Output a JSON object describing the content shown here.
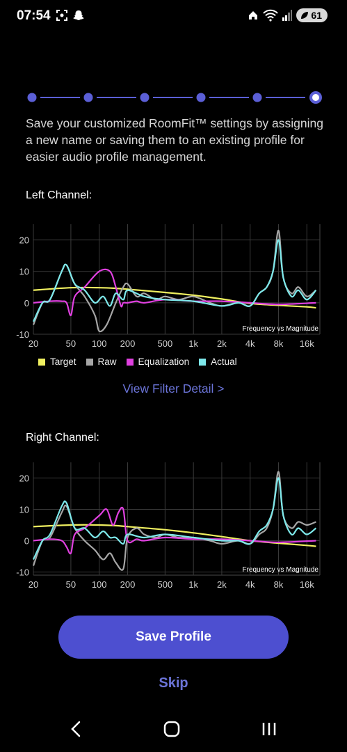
{
  "status_bar": {
    "time": "07:54",
    "battery": "61"
  },
  "stepper": {
    "steps": 6,
    "current": 6
  },
  "description": "Save your customized RoomFit™ settings by assigning a new name or saving them to an existing profile for easier audio profile management.",
  "left_channel": {
    "title": "Left Channel:"
  },
  "right_channel": {
    "title": "Right Channel:"
  },
  "view_filter_detail": "View Filter Detail >",
  "save_button": "Save Profile",
  "skip": "Skip",
  "chart_data": [
    {
      "type": "line",
      "title": "Frequency vs Magnitude",
      "x_scale": "log",
      "x_ticks": [
        "20",
        "50",
        "100",
        "200",
        "500",
        "1k",
        "2k",
        "4k",
        "8k",
        "16k"
      ],
      "x_tick_values": [
        20,
        50,
        100,
        200,
        500,
        1000,
        2000,
        4000,
        8000,
        16000
      ],
      "y_ticks": [
        20,
        10,
        0,
        -10
      ],
      "ylim": [
        -10,
        25
      ],
      "xlim": [
        20,
        22000
      ],
      "grid": true,
      "legend_position": "bottom",
      "series": [
        {
          "name": "Target",
          "color": "#f0f060",
          "x": [
            20,
            50,
            100,
            150,
            200,
            500,
            1000,
            2000,
            4000,
            8000,
            16000,
            20000
          ],
          "values": [
            4,
            4.8,
            4.8,
            4.6,
            4.3,
            3.3,
            2.4,
            1.2,
            -0.2,
            -0.8,
            -1.3,
            -1.6
          ]
        },
        {
          "name": "Raw",
          "color": "#a6a6a6",
          "x": [
            20,
            25,
            30,
            40,
            45,
            55,
            70,
            90,
            100,
            120,
            150,
            180,
            200,
            250,
            300,
            400,
            500,
            700,
            1000,
            1500,
            2000,
            3000,
            4000,
            5000,
            6000,
            7000,
            8000,
            9000,
            11000,
            13000,
            16000,
            20000
          ],
          "values": [
            -7,
            0,
            1,
            10,
            12,
            6,
            2,
            -4,
            -9,
            -7,
            0,
            5,
            6,
            2,
            3,
            1,
            2,
            1,
            2,
            0,
            -1,
            0,
            -1,
            3,
            5,
            10,
            23,
            8,
            3,
            5,
            2,
            4
          ]
        },
        {
          "name": "Equalization",
          "color": "#e040e0",
          "x": [
            20,
            30,
            40,
            45,
            50,
            55,
            70,
            100,
            130,
            150,
            170,
            180,
            200,
            250,
            300,
            500,
            1000,
            2000,
            4000,
            8000,
            20000
          ],
          "values": [
            0,
            0.5,
            0.5,
            0,
            -4,
            2,
            5,
            10,
            10,
            5,
            -1,
            0,
            0,
            0.5,
            0,
            1,
            0.5,
            0.5,
            0,
            -0.5,
            0
          ]
        },
        {
          "name": "Actual",
          "color": "#7de8ea",
          "x": [
            20,
            25,
            30,
            40,
            45,
            55,
            70,
            90,
            110,
            130,
            150,
            180,
            200,
            300,
            500,
            1000,
            2000,
            3000,
            4000,
            5000,
            6000,
            7000,
            8000,
            9000,
            11000,
            13000,
            16000,
            20000
          ],
          "values": [
            -6,
            0,
            1,
            10,
            12,
            6,
            4,
            0,
            2,
            -1,
            3,
            1,
            4,
            2,
            1,
            0.5,
            -1,
            0,
            -1,
            3,
            5,
            10,
            20,
            8,
            2,
            4,
            1,
            4
          ]
        }
      ]
    },
    {
      "type": "line",
      "title": "Frequency vs Magnitude",
      "x_scale": "log",
      "x_ticks": [
        "20",
        "50",
        "100",
        "200",
        "500",
        "1k",
        "2k",
        "4k",
        "8k",
        "16k"
      ],
      "x_tick_values": [
        20,
        50,
        100,
        200,
        500,
        1000,
        2000,
        4000,
        8000,
        16000
      ],
      "y_ticks": [
        20,
        10,
        0,
        -10
      ],
      "ylim": [
        -11,
        25
      ],
      "xlim": [
        20,
        22000
      ],
      "grid": true,
      "series": [
        {
          "name": "Target",
          "color": "#f0f060",
          "x": [
            20,
            50,
            100,
            150,
            200,
            500,
            1000,
            2000,
            4000,
            8000,
            16000,
            20000
          ],
          "values": [
            4.5,
            5,
            5,
            4.8,
            4.5,
            3.5,
            2.5,
            1.3,
            0,
            -0.8,
            -1.5,
            -1.8
          ]
        },
        {
          "name": "Raw",
          "color": "#a6a6a6",
          "x": [
            20,
            25,
            30,
            40,
            45,
            55,
            70,
            90,
            110,
            130,
            150,
            180,
            200,
            250,
            300,
            400,
            500,
            700,
            1000,
            1500,
            2000,
            3000,
            4000,
            5000,
            6000,
            7000,
            8000,
            9000,
            11000,
            13000,
            16000,
            20000
          ],
          "values": [
            -8,
            0,
            1,
            9,
            11,
            4,
            0,
            -3,
            -6,
            -4,
            -7,
            -9,
            1,
            4,
            2,
            1,
            2,
            1,
            1,
            0,
            -1,
            0,
            -1,
            2,
            4,
            10,
            22,
            8,
            4,
            6,
            5,
            6
          ]
        },
        {
          "name": "Equalization",
          "color": "#e040e0",
          "x": [
            20,
            30,
            40,
            45,
            50,
            55,
            70,
            100,
            120,
            140,
            160,
            180,
            200,
            250,
            300,
            500,
            1000,
            2000,
            4000,
            8000,
            20000
          ],
          "values": [
            0,
            0.5,
            0,
            -2,
            -4,
            2,
            4,
            8,
            10,
            5,
            9,
            10,
            0,
            0.5,
            0,
            1,
            0.5,
            0.5,
            0,
            -0.5,
            0
          ]
        },
        {
          "name": "Actual",
          "color": "#7de8ea",
          "x": [
            20,
            25,
            30,
            40,
            45,
            55,
            70,
            90,
            110,
            130,
            150,
            180,
            200,
            300,
            500,
            1000,
            2000,
            3000,
            4000,
            5000,
            6000,
            7000,
            8000,
            9000,
            11000,
            13000,
            16000,
            20000
          ],
          "values": [
            -6,
            0,
            2,
            11,
            12,
            4,
            4,
            1,
            3,
            1,
            1,
            -1,
            2,
            1,
            2,
            1,
            0,
            0,
            -1,
            3,
            5,
            10,
            20,
            8,
            2,
            4,
            2,
            4
          ]
        }
      ]
    }
  ]
}
